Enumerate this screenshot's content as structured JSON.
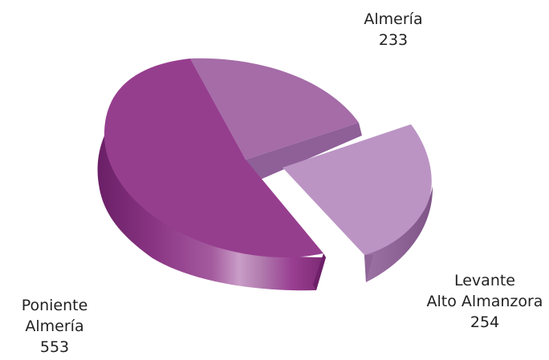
{
  "chart_data": {
    "type": "pie",
    "style": "3d-exploded",
    "legend": "none",
    "slices": [
      {
        "label_lines": [
          "Almería",
          "233"
        ],
        "category": "Almería",
        "value": 233,
        "color": "#a56ca8"
      },
      {
        "label_lines": [
          "Levante",
          "Alto Almanzora",
          "254"
        ],
        "category": "Levante Alto Almanzora",
        "value": 254,
        "color": "#bb94c4",
        "exploded": true
      },
      {
        "label_lines": [
          "Poniente",
          "Almería",
          "553"
        ],
        "category": "Poniente Almería",
        "value": 553,
        "color": "#963e8e"
      }
    ]
  }
}
